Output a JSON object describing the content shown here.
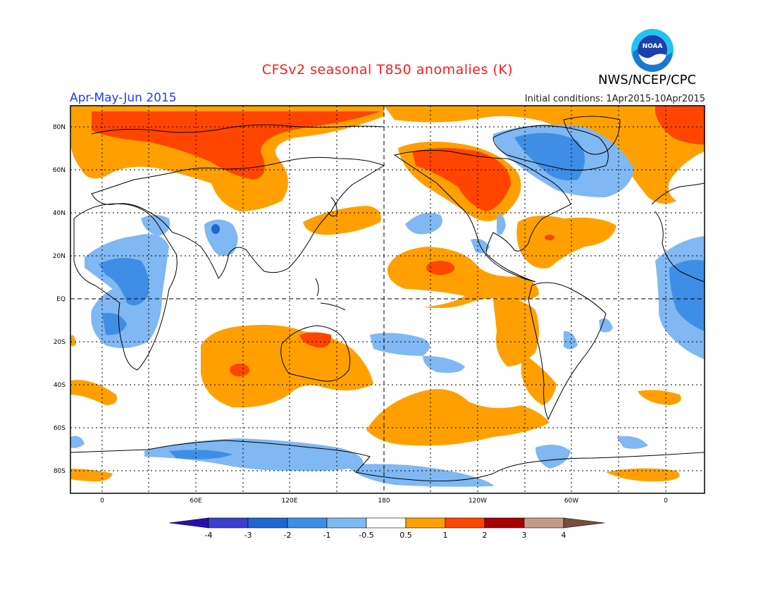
{
  "header": {
    "title": "CFSv2 seasonal T850 anomalies (K)",
    "organization": "NWS/NCEP/CPC",
    "period": "Apr-May-Jun 2015",
    "initial_conditions": "Initial conditions: 1Apr2015-10Apr2015",
    "logo_text": "NOAA"
  },
  "map": {
    "lat_labels": [
      "80N",
      "60N",
      "40N",
      "20N",
      "EQ",
      "20S",
      "40S",
      "60S",
      "80S"
    ],
    "lon_labels": [
      "0",
      "60E",
      "120E",
      "180",
      "120W",
      "60W",
      "0"
    ]
  },
  "colorbar": {
    "labels": [
      "-4",
      "-3",
      "-2",
      "-1",
      "-0.5",
      "0.5",
      "1",
      "2",
      "3",
      "4"
    ],
    "colors": [
      "#2a0fb0",
      "#3a3fd0",
      "#2066d0",
      "#3f8ee6",
      "#7fb8f2",
      "#ffffff",
      "#ffa000",
      "#ff4500",
      "#a80000",
      "#c59a87",
      "#7a4e3c"
    ]
  }
}
